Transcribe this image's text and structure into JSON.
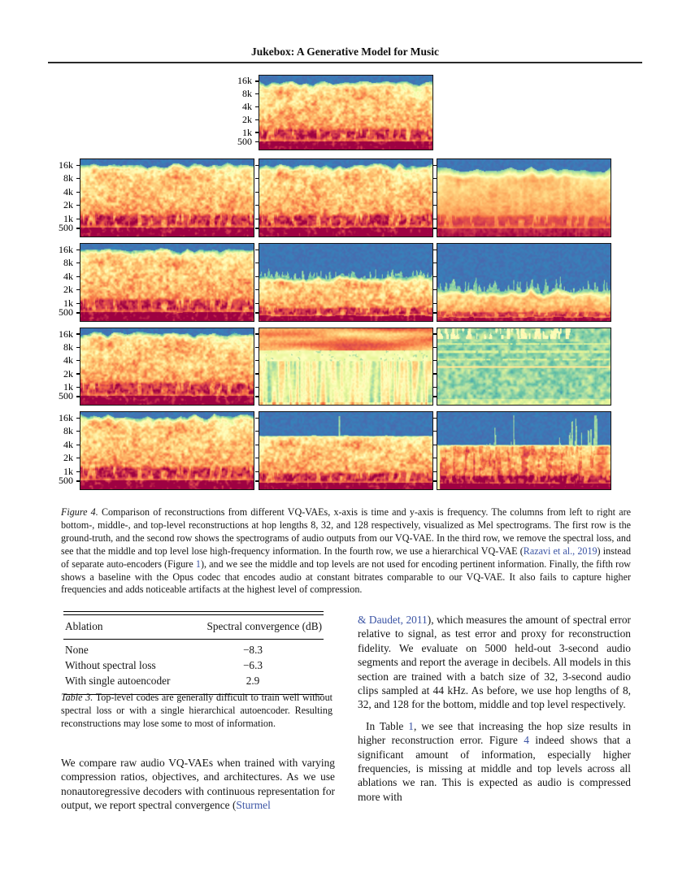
{
  "header": {
    "title": "Jukebox: A Generative Model for Music"
  },
  "link_color": "#3a53a4",
  "figure": {
    "y_tick_labels": [
      "16k",
      "8k",
      "4k",
      "2k",
      "1k",
      "500"
    ],
    "colormap": [
      "#5e4fa2",
      "#3288bd",
      "#66c2a5",
      "#abdda4",
      "#e6f598",
      "#ffffbf",
      "#fee08b",
      "#fdae61",
      "#f46d43",
      "#d53e4f",
      "#9e0142"
    ],
    "panels": [
      {
        "name": "ground-truth",
        "row": 0,
        "col": 1,
        "labels": true,
        "mode": "music",
        "cut": 0.1,
        "seed": 11
      },
      {
        "name": "vqvae-bottom-hop8",
        "row": 1,
        "col": 0,
        "labels": true,
        "mode": "music",
        "cut": 0.08,
        "seed": 21
      },
      {
        "name": "vqvae-middle-hop32",
        "row": 1,
        "col": 1,
        "labels": false,
        "mode": "music",
        "cut": 0.08,
        "seed": 31
      },
      {
        "name": "vqvae-top-hop128",
        "row": 1,
        "col": 2,
        "labels": false,
        "mode": "music",
        "cut": 0.13,
        "soft": 0.8,
        "seed": 41
      },
      {
        "name": "nospectral-bottom-hop8",
        "row": 2,
        "col": 0,
        "labels": true,
        "mode": "music",
        "cut": 0.07,
        "seed": 51
      },
      {
        "name": "nospectral-middle-hop32",
        "row": 2,
        "col": 1,
        "labels": false,
        "mode": "music",
        "cut": 0.42,
        "fringe": 1.0,
        "seed": 61
      },
      {
        "name": "nospectral-top-hop128",
        "row": 2,
        "col": 2,
        "labels": false,
        "mode": "music",
        "cut": 0.6,
        "fringe": 1.6,
        "soft": 0.4,
        "seed": 71
      },
      {
        "name": "hierarchical-bottom-hop8",
        "row": 3,
        "col": 0,
        "labels": true,
        "mode": "music",
        "cut": 0.07,
        "seed": 81
      },
      {
        "name": "hierarchical-middle-hop32",
        "row": 3,
        "col": 1,
        "labels": false,
        "mode": "stripes",
        "seed": 91
      },
      {
        "name": "hierarchical-top-hop128",
        "row": 3,
        "col": 2,
        "labels": false,
        "mode": "bluenoise",
        "seed": 101
      },
      {
        "name": "opus-bottom",
        "row": 4,
        "col": 0,
        "labels": true,
        "mode": "music",
        "cut": 0.05,
        "seed": 111
      },
      {
        "name": "opus-middle",
        "row": 4,
        "col": 1,
        "labels": false,
        "mode": "music",
        "cut": 0.3,
        "hard": true,
        "spike": [
          0.46,
          0.05
        ],
        "seed": 121
      },
      {
        "name": "opus-top",
        "row": 4,
        "col": 2,
        "labels": false,
        "mode": "music",
        "cut": 0.42,
        "hard": true,
        "orange": 0.05,
        "leftBar": true,
        "vdash": true,
        "clusters": [
          [
            0.26,
            0.34
          ],
          [
            0.41,
            0.5
          ],
          [
            0.7,
            0.92
          ]
        ],
        "seed": 131
      }
    ]
  },
  "figure_caption": {
    "segments": [
      {
        "t": "Figure 4.",
        "c": "i"
      },
      {
        "t": " Comparison of reconstructions from different VQ-VAEs, x-axis is time and y-axis is frequency. The columns from left to right are bottom-, middle-, and top-level reconstructions at hop lengths 8, 32, and 128 respectively, visualized as Mel spectrograms. The first row is the ground-truth, and the second row shows the spectrograms of audio outputs from our VQ-VAE. In the third row, we remove the spectral loss, and see that the middle and top level lose high-frequency information. In the fourth row, we use a hierarchical VQ-VAE ("
      },
      {
        "t": "Razavi et al., 2019",
        "c": "a"
      },
      {
        "t": ") instead of separate auto-encoders (Figure "
      },
      {
        "t": "1",
        "c": "a"
      },
      {
        "t": "), and we see the middle and top levels are not used for encoding pertinent information. Finally, the fifth row shows a baseline with the Opus codec that encodes audio at constant bitrates comparable to our VQ-VAE. It also fails to capture higher frequencies and adds noticeable artifacts at the highest level of compression."
      }
    ]
  },
  "table": {
    "headers": [
      "Ablation",
      "Spectral convergence (dB)"
    ],
    "rows": [
      [
        "None",
        "−8.3"
      ],
      [
        "Without spectral loss",
        "−6.3"
      ],
      [
        "With single autoencoder",
        "2.9"
      ]
    ]
  },
  "table_caption": {
    "segments": [
      {
        "t": "Table 3.",
        "c": "i"
      },
      {
        "t": " Top-level codes are generally difficult to train well without spectral loss or with a single hierarchical autoencoder. Resulting reconstructions may lose some to most of information."
      }
    ]
  },
  "body": {
    "left_paragraph": {
      "segments": [
        {
          "t": "We compare raw audio VQ-VAEs when trained with varying compression ratios, objectives, and architectures. As we use nonautoregressive decoders with continuous representation for output, we report spectral convergence ("
        },
        {
          "t": "Sturmel",
          "c": "a"
        }
      ]
    },
    "right_paragraph_1": {
      "segments": [
        {
          "t": "& Daudet, 2011",
          "c": "a"
        },
        {
          "t": "), which measures the amount of spectral error relative to signal, as test error and proxy for reconstruction fidelity. We evaluate on 5000 held-out 3-second audio segments and report the average in decibels. All models in this section are trained with a batch size of 32, 3-second audio clips sampled at 44 kHz. As before, we use hop lengths of 8, 32, and 128 for the bottom, middle and top level respectively."
        }
      ]
    },
    "right_paragraph_2": {
      "segments": [
        {
          "t": "In Table "
        },
        {
          "t": "1",
          "c": "a"
        },
        {
          "t": ", we see that increasing the hop size results in higher reconstruction error. Figure "
        },
        {
          "t": "4",
          "c": "a"
        },
        {
          "t": " indeed shows that a significant amount of information, especially higher frequencies, is missing at middle and top levels across all ablations we ran. This is expected as audio is compressed more with"
        }
      ]
    }
  }
}
